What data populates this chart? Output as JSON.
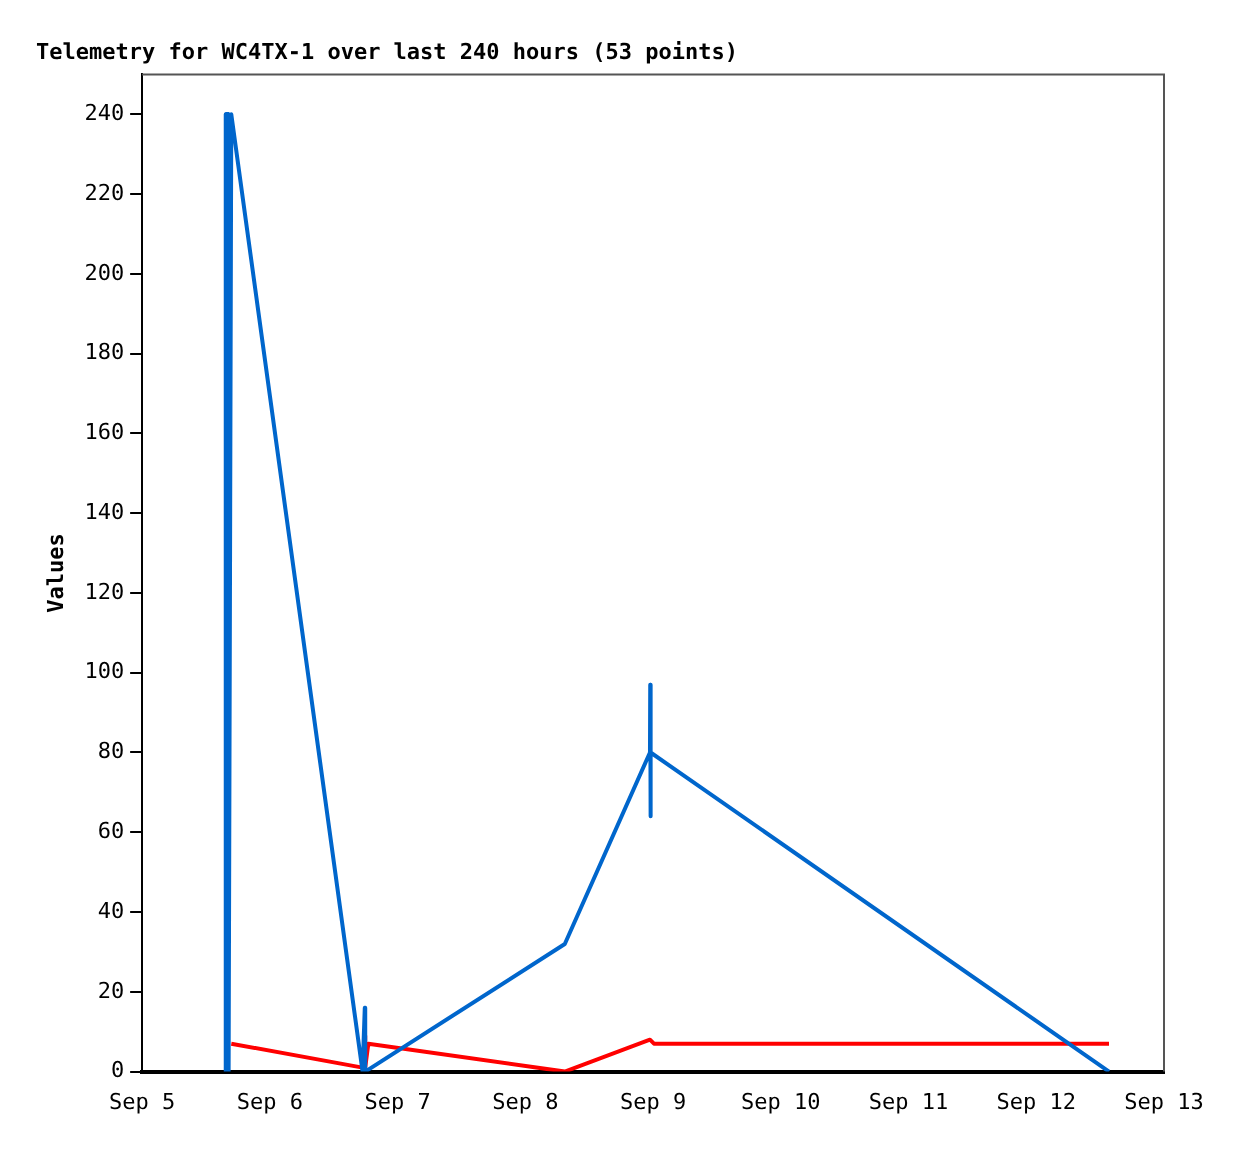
{
  "chart_data": {
    "type": "line",
    "title": "Telemetry for WC4TX-1 over last 240 hours (53 points)",
    "ylabel": "Values",
    "xlim": [
      "--09-05",
      "--09-13"
    ],
    "xticks": [
      {
        "value": "--09-05",
        "label": "Sep 5"
      },
      {
        "value": "--09-06",
        "label": "Sep 6"
      },
      {
        "value": "--09-07",
        "label": "Sep 7"
      },
      {
        "value": "--09-08",
        "label": "Sep 8"
      },
      {
        "value": "--09-09",
        "label": "Sep 9"
      },
      {
        "value": "--09-10",
        "label": "Sep 10"
      },
      {
        "value": "--09-11",
        "label": "Sep 11"
      },
      {
        "value": "--09-12",
        "label": "Sep 12"
      },
      {
        "value": "--09-13",
        "label": "Sep 13"
      }
    ],
    "ylim": [
      0,
      250
    ],
    "yticks": [
      0,
      20,
      40,
      60,
      80,
      100,
      120,
      140,
      160,
      180,
      200,
      220,
      240
    ],
    "grid": false,
    "legend": false,
    "marker": "none",
    "line_style": "solid",
    "series": [
      {
        "color": "#0066cc",
        "x": [
          "--09-05T15:35",
          "--09-05T15:40",
          "--09-05T15:45",
          "--09-05T15:50",
          "--09-05T15:55",
          "--09-05T16:00",
          "--09-05T16:05",
          "--09-05T16:10",
          "--09-05T16:15",
          "--09-05T16:45",
          "--09-06T17:25",
          "--09-06T17:50",
          "--09-06T17:55",
          "--09-08T07:25",
          "--09-08T23:25",
          "--09-08T23:28",
          "--09-08T23:31",
          "--09-08T23:34",
          "--09-12T13:40"
        ],
        "values": [
          0,
          240,
          0,
          240,
          0,
          240,
          0,
          240,
          0,
          240,
          0,
          16,
          0,
          32,
          80,
          97,
          64,
          80,
          0
        ]
      },
      {
        "color": "#ff0000",
        "x": [
          "--09-05T16:45",
          "--09-06T17:25",
          "--09-06T17:50",
          "--09-06T17:55",
          "--09-06T18:30",
          "--09-08T07:25",
          "--09-08T23:25",
          "--09-09T00:10",
          "--09-12T13:40"
        ],
        "values": [
          7,
          1,
          9,
          1,
          7,
          0,
          8,
          7,
          7
        ]
      }
    ]
  }
}
